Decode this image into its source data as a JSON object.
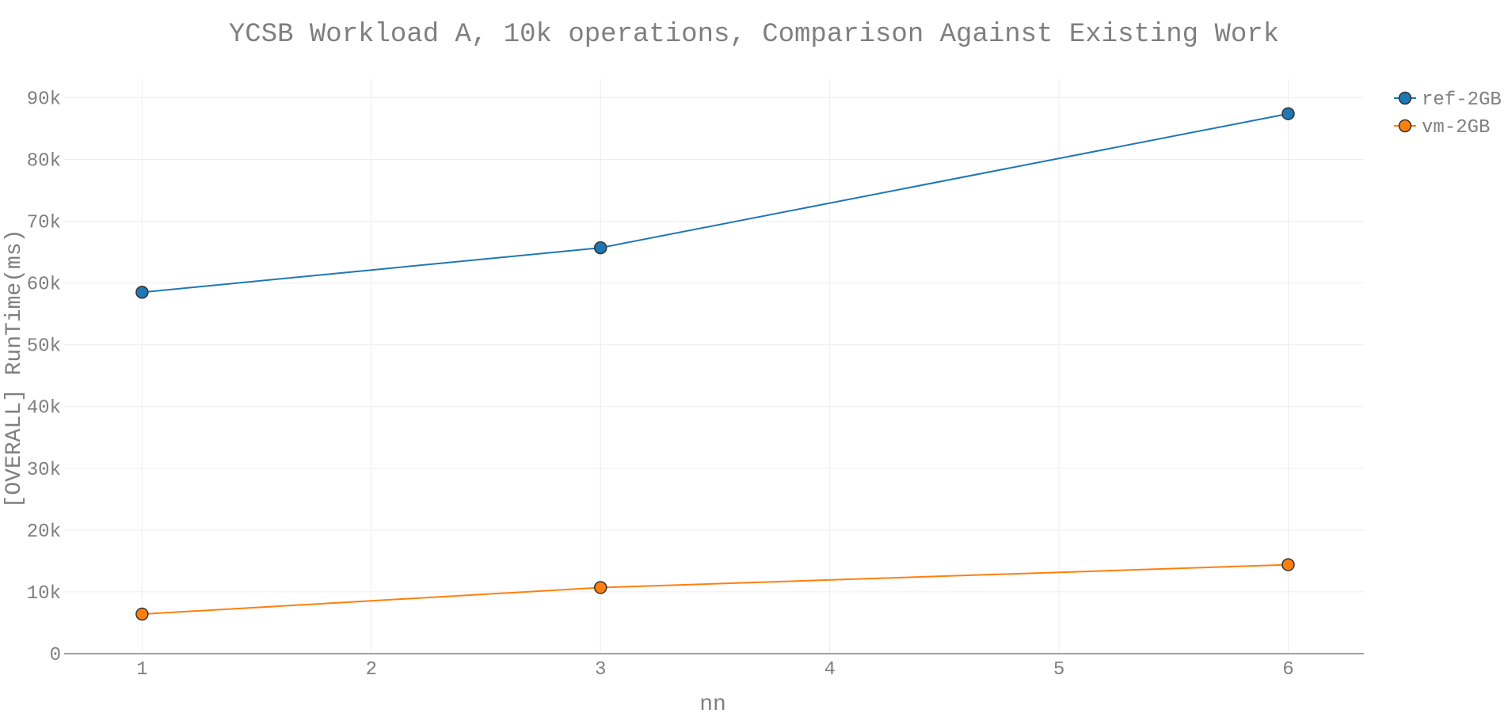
{
  "chart_data": {
    "type": "line",
    "title": "YCSB Workload A, 10k operations, Comparison Against Existing Work",
    "xlabel": "nn",
    "ylabel": "[OVERALL] RunTime(ms)",
    "xlim": [
      0.66,
      6.33
    ],
    "ylim": [
      0,
      93000
    ],
    "x_ticks": [
      1,
      2,
      3,
      4,
      5,
      6
    ],
    "x_tick_labels": [
      "1",
      "2",
      "3",
      "4",
      "5",
      "6"
    ],
    "y_ticks": [
      0,
      10000,
      20000,
      30000,
      40000,
      50000,
      60000,
      70000,
      80000,
      90000
    ],
    "y_tick_labels": [
      "0",
      "10k",
      "20k",
      "30k",
      "40k",
      "50k",
      "60k",
      "70k",
      "80k",
      "90k"
    ],
    "grid": true,
    "legend_position": "top-right",
    "series": [
      {
        "name": "ref-2GB",
        "color": "#1f77b4",
        "x": [
          1,
          3,
          6
        ],
        "values": [
          58500,
          65700,
          87400
        ]
      },
      {
        "name": "vm-2GB",
        "color": "#ff7f0e",
        "x": [
          1,
          3,
          6
        ],
        "values": [
          6400,
          10700,
          14400
        ]
      }
    ]
  }
}
